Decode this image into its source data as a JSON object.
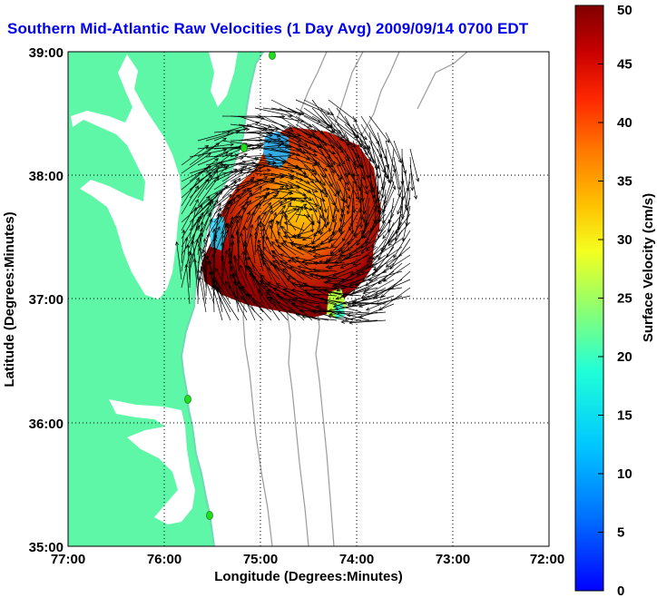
{
  "map": {
    "title": "Southern Mid-Atlantic Raw Velocities (1 Day Avg) 2009/09/14 0700 EDT",
    "xlabel": "Longitude (Degrees:Minutes)",
    "ylabel": "Latitude (Degrees:Minutes)",
    "x_ticks": [
      "77:00",
      "76:00",
      "75:00",
      "74:00",
      "73:00",
      "72:00"
    ],
    "y_ticks": [
      "39:00",
      "38:00",
      "37:00",
      "36:00",
      "35:00"
    ],
    "x_range_deg_west": [
      77,
      72
    ],
    "y_range_deg_north": [
      35,
      39
    ],
    "grid": "dotted",
    "land_color": "#5ef7a8",
    "contour_color": "#9a9a9a",
    "vector_color": "#000000",
    "station_marker_color": "#22dd22"
  },
  "colorbar": {
    "label": "Surface Velocity (cm/s)",
    "ticks": [
      "0",
      "5",
      "10",
      "15",
      "20",
      "25",
      "30",
      "35",
      "40",
      "45",
      "50"
    ],
    "range": [
      0,
      50
    ],
    "units": "cm/s",
    "colormap": "jet"
  }
}
